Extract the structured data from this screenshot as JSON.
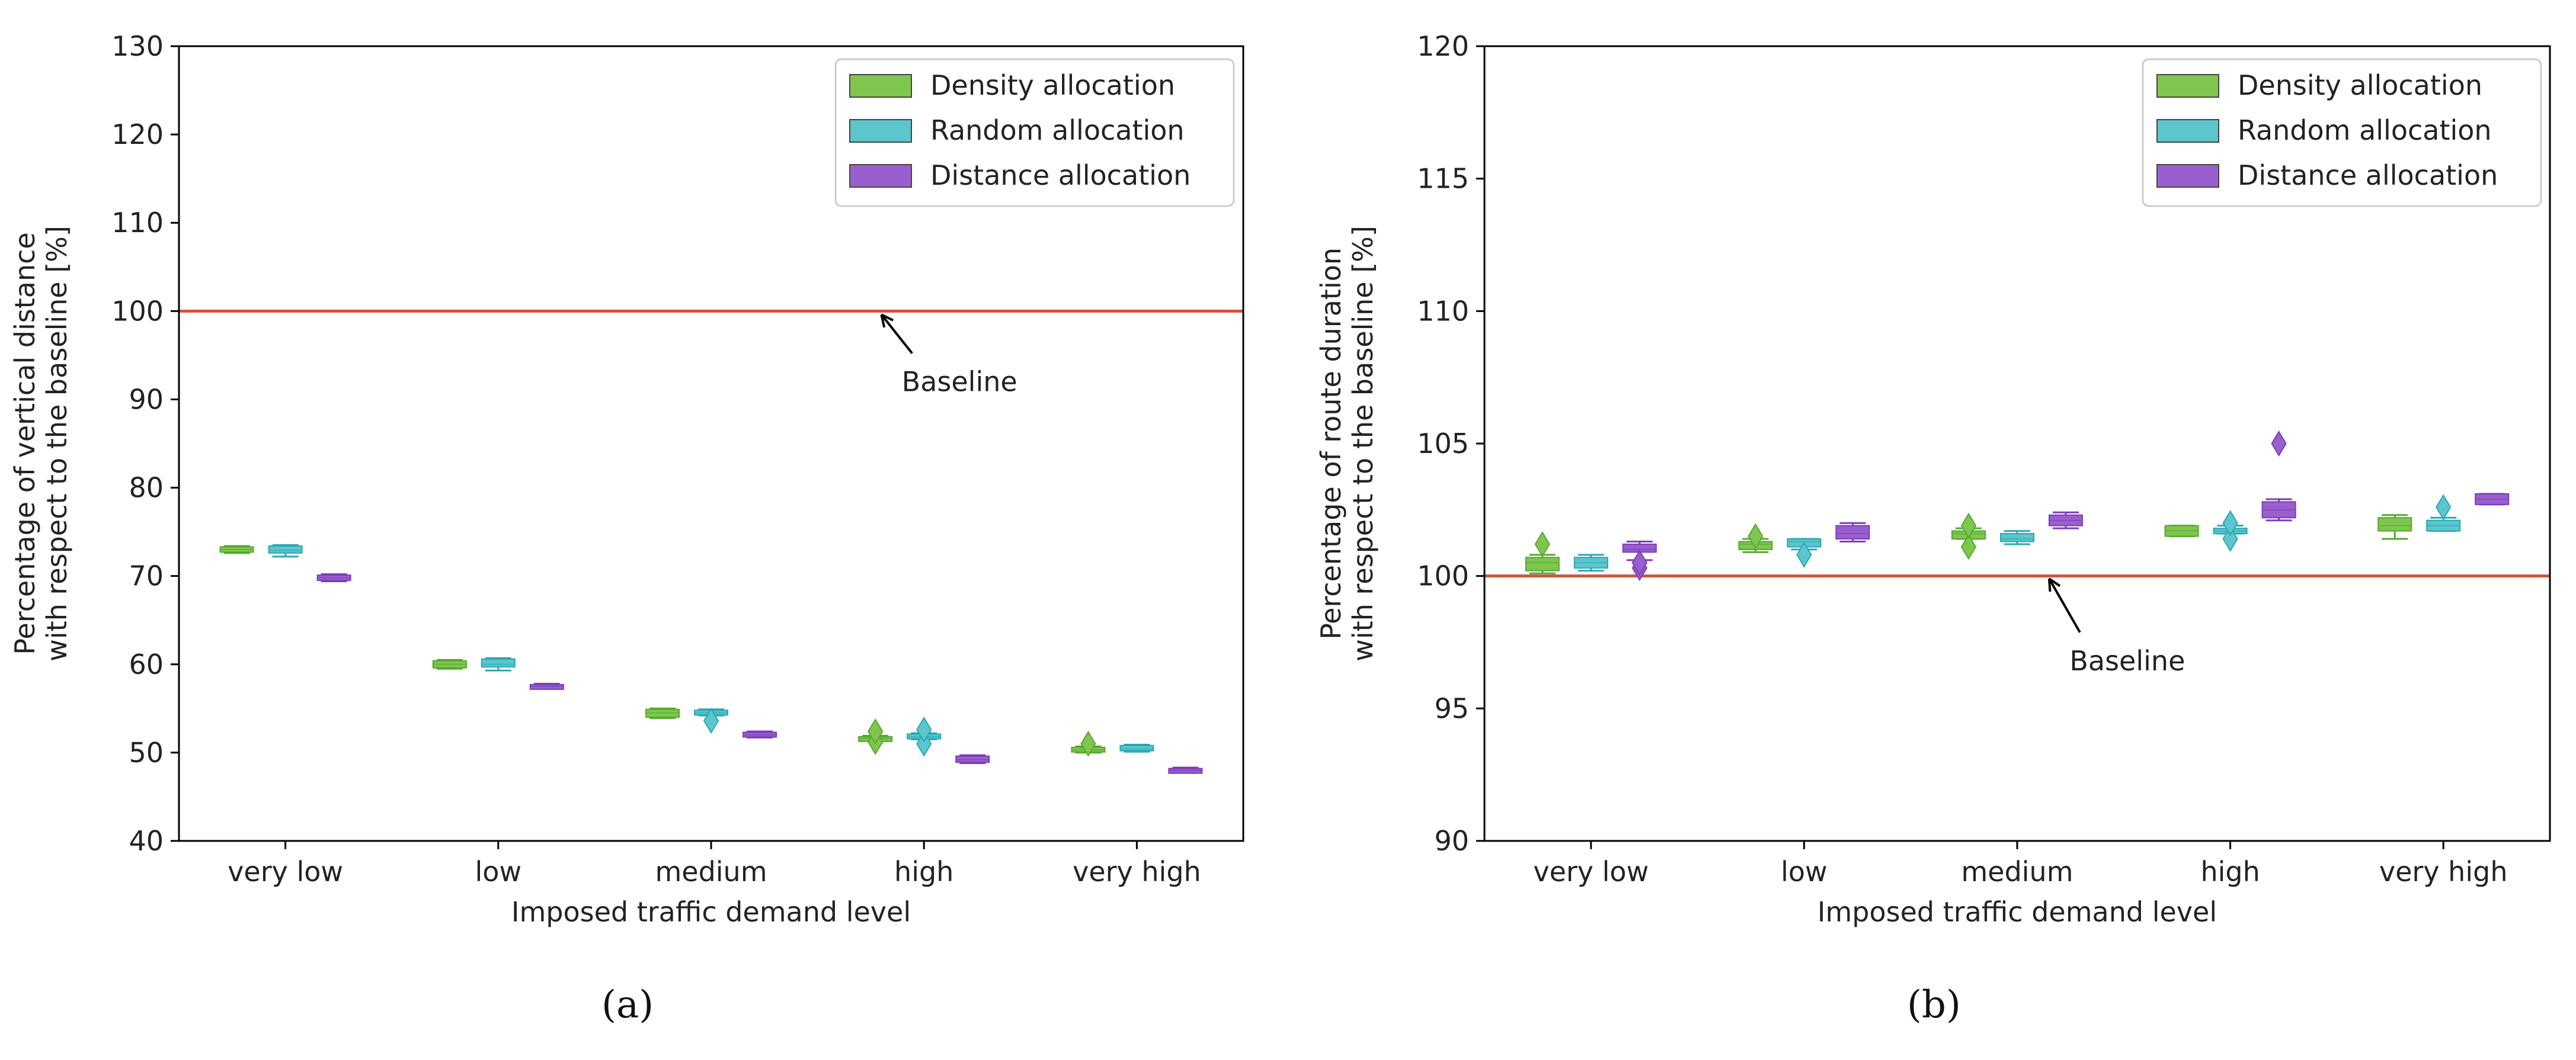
{
  "colors": {
    "density": "#7fc64f",
    "density_edge": "#55a82f",
    "random": "#5bc6cc",
    "random_edge": "#2aa7b4",
    "distance": "#9a5fcf",
    "distance_edge": "#7b3cb8",
    "baseline": "#d2533f",
    "axis": "#000000",
    "legend_edge": "#444444"
  },
  "captions": [
    "(a)",
    "(b)"
  ],
  "chart_data": [
    {
      "type": "box",
      "caption": "(a)",
      "xlabel": "Imposed traffic demand level",
      "ylabel_line1": "Percentage of vertical distance",
      "ylabel_line2": "with respect to the baseline [%]",
      "ylim": [
        40,
        130
      ],
      "yticks": [
        40,
        50,
        60,
        70,
        80,
        90,
        100,
        110,
        120,
        130
      ],
      "categories": [
        "very low",
        "low",
        "medium",
        "high",
        "very high"
      ],
      "legend_position": "top-right",
      "baseline": {
        "value": 100,
        "label": "Baseline",
        "label_x": 3.5,
        "label_y": 92,
        "arrow_to_x": 3.3,
        "arrow_to_y": 99.6
      },
      "series": [
        {
          "name": "Density allocation",
          "color_key": "density",
          "boxes": [
            {
              "low": 72.6,
              "q1": 72.7,
              "med": 73.0,
              "q3": 73.3,
              "high": 73.4,
              "outliers": []
            },
            {
              "low": 59.5,
              "q1": 59.6,
              "med": 60.0,
              "q3": 60.4,
              "high": 60.5,
              "outliers": []
            },
            {
              "low": 53.9,
              "q1": 54.0,
              "med": 54.5,
              "q3": 54.9,
              "high": 55.0,
              "outliers": []
            },
            {
              "low": 51.3,
              "q1": 51.4,
              "med": 51.6,
              "q3": 51.8,
              "high": 51.9,
              "outliers": [
                51.2,
                52.4
              ]
            },
            {
              "low": 50.0,
              "q1": 50.1,
              "med": 50.3,
              "q3": 50.6,
              "high": 50.7,
              "outliers": [
                51.0
              ]
            }
          ]
        },
        {
          "name": "Random allocation",
          "color_key": "random",
          "boxes": [
            {
              "low": 72.2,
              "q1": 72.6,
              "med": 72.9,
              "q3": 73.4,
              "high": 73.5,
              "outliers": []
            },
            {
              "low": 59.3,
              "q1": 59.7,
              "med": 60.0,
              "q3": 60.6,
              "high": 60.7,
              "outliers": []
            },
            {
              "low": 54.2,
              "q1": 54.3,
              "med": 54.5,
              "q3": 54.8,
              "high": 54.9,
              "outliers": [
                53.6
              ]
            },
            {
              "low": 51.5,
              "q1": 51.6,
              "med": 51.8,
              "q3": 52.1,
              "high": 52.2,
              "outliers": [
                51.0,
                52.6
              ]
            },
            {
              "low": 50.1,
              "q1": 50.2,
              "med": 50.4,
              "q3": 50.8,
              "high": 50.9,
              "outliers": []
            }
          ]
        },
        {
          "name": "Distance allocation",
          "color_key": "distance",
          "boxes": [
            {
              "low": 69.4,
              "q1": 69.5,
              "med": 69.8,
              "q3": 70.1,
              "high": 70.2,
              "outliers": []
            },
            {
              "low": 57.2,
              "q1": 57.3,
              "med": 57.5,
              "q3": 57.7,
              "high": 57.8,
              "outliers": []
            },
            {
              "low": 51.7,
              "q1": 51.8,
              "med": 52.0,
              "q3": 52.3,
              "high": 52.4,
              "outliers": []
            },
            {
              "low": 48.8,
              "q1": 48.9,
              "med": 49.2,
              "q3": 49.6,
              "high": 49.7,
              "outliers": []
            },
            {
              "low": 47.7,
              "q1": 47.8,
              "med": 48.0,
              "q3": 48.2,
              "high": 48.3,
              "outliers": []
            }
          ]
        }
      ]
    },
    {
      "type": "box",
      "caption": "(b)",
      "xlabel": "Imposed traffic demand level",
      "ylabel_line1": "Percentage of route duration",
      "ylabel_line2": "with respect to the baseline [%]",
      "ylim": [
        90,
        120
      ],
      "yticks": [
        90,
        95,
        100,
        105,
        110,
        115,
        120
      ],
      "categories": [
        "very low",
        "low",
        "medium",
        "high",
        "very high"
      ],
      "legend_position": "top-right",
      "baseline": {
        "value": 100,
        "label": "Baseline",
        "label_x": 2.85,
        "label_y": 96.8,
        "arrow_to_x": 2.65,
        "arrow_to_y": 99.9
      },
      "series": [
        {
          "name": "Density allocation",
          "color_key": "density",
          "boxes": [
            {
              "low": 100.1,
              "q1": 100.2,
              "med": 100.5,
              "q3": 100.7,
              "high": 100.8,
              "outliers": [
                101.2
              ]
            },
            {
              "low": 100.9,
              "q1": 101.0,
              "med": 101.2,
              "q3": 101.3,
              "high": 101.4,
              "outliers": [
                101.5
              ]
            },
            {
              "low": 101.4,
              "q1": 101.4,
              "med": 101.6,
              "q3": 101.7,
              "high": 101.8,
              "outliers": [
                101.1,
                101.9
              ]
            },
            {
              "low": 101.5,
              "q1": 101.5,
              "med": 101.7,
              "q3": 101.9,
              "high": 101.9,
              "outliers": []
            },
            {
              "low": 101.4,
              "q1": 101.7,
              "med": 101.9,
              "q3": 102.2,
              "high": 102.3,
              "outliers": []
            }
          ]
        },
        {
          "name": "Random allocation",
          "color_key": "random",
          "boxes": [
            {
              "low": 100.2,
              "q1": 100.3,
              "med": 100.5,
              "q3": 100.7,
              "high": 100.8,
              "outliers": []
            },
            {
              "low": 101.0,
              "q1": 101.1,
              "med": 101.3,
              "q3": 101.4,
              "high": 101.4,
              "outliers": [
                100.8
              ]
            },
            {
              "low": 101.2,
              "q1": 101.3,
              "med": 101.4,
              "q3": 101.6,
              "high": 101.7,
              "outliers": []
            },
            {
              "low": 101.6,
              "q1": 101.6,
              "med": 101.7,
              "q3": 101.8,
              "high": 101.9,
              "outliers": [
                101.4,
                102.0
              ]
            },
            {
              "low": 101.7,
              "q1": 101.7,
              "med": 101.9,
              "q3": 102.1,
              "high": 102.2,
              "outliers": [
                102.6
              ]
            }
          ]
        },
        {
          "name": "Distance allocation",
          "color_key": "distance",
          "boxes": [
            {
              "low": 100.6,
              "q1": 100.9,
              "med": 101.0,
              "q3": 101.2,
              "high": 101.3,
              "outliers": [
                100.3,
                100.5
              ]
            },
            {
              "low": 101.3,
              "q1": 101.4,
              "med": 101.6,
              "q3": 101.9,
              "high": 102.0,
              "outliers": []
            },
            {
              "low": 101.8,
              "q1": 101.9,
              "med": 102.1,
              "q3": 102.3,
              "high": 102.4,
              "outliers": []
            },
            {
              "low": 102.1,
              "q1": 102.2,
              "med": 102.5,
              "q3": 102.8,
              "high": 102.9,
              "outliers": [
                105.0
              ]
            },
            {
              "low": 102.7,
              "q1": 102.7,
              "med": 102.9,
              "q3": 103.1,
              "high": 103.1,
              "outliers": []
            }
          ]
        }
      ]
    }
  ]
}
